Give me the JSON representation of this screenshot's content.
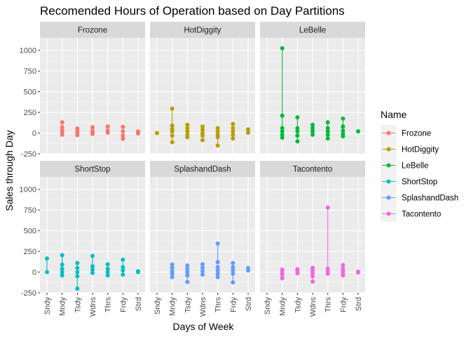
{
  "chart_data": {
    "type": "line",
    "title": "Recomended Hours of Operation based on Day Partitions",
    "xlabel": "Days of Week",
    "ylabel": "Sales through Day",
    "categories": [
      "Sndy",
      "Mndy",
      "Tsdy",
      "Wdns",
      "Thrs",
      "Frdy",
      "Strd"
    ],
    "ylim": [
      -250,
      1150
    ],
    "yticks": [
      -250,
      0,
      250,
      500,
      750,
      1000
    ],
    "grid": true,
    "layout": "facet grid 2 rows x 3 columns",
    "legend": {
      "title": "Name",
      "position": "right"
    },
    "series": [
      {
        "name": "Frozone",
        "color": "#F8766D",
        "points": [
          [
            "Mndy",
            130
          ],
          [
            "Mndy",
            70
          ],
          [
            "Mndy",
            35
          ],
          [
            "Mndy",
            10
          ],
          [
            "Mndy",
            -20
          ],
          [
            "Tsdy",
            55
          ],
          [
            "Tsdy",
            20
          ],
          [
            "Tsdy",
            -10
          ],
          [
            "Tsdy",
            -25
          ],
          [
            "Wdns",
            70
          ],
          [
            "Wdns",
            25
          ],
          [
            "Wdns",
            5
          ],
          [
            "Wdns",
            -10
          ],
          [
            "Thrs",
            80
          ],
          [
            "Thrs",
            30
          ],
          [
            "Thrs",
            5
          ],
          [
            "Frdy",
            75
          ],
          [
            "Frdy",
            20
          ],
          [
            "Frdy",
            -30
          ],
          [
            "Frdy",
            -70
          ],
          [
            "Strd",
            20
          ],
          [
            "Strd",
            5
          ],
          [
            "Strd",
            -5
          ]
        ]
      },
      {
        "name": "HotDiggity",
        "color": "#B79F00",
        "points": [
          [
            "Sndy",
            0
          ],
          [
            "Mndy",
            295
          ],
          [
            "Mndy",
            90
          ],
          [
            "Mndy",
            50
          ],
          [
            "Mndy",
            20
          ],
          [
            "Mndy",
            -30
          ],
          [
            "Mndy",
            -110
          ],
          [
            "Tsdy",
            100
          ],
          [
            "Tsdy",
            60
          ],
          [
            "Tsdy",
            20
          ],
          [
            "Tsdy",
            -20
          ],
          [
            "Tsdy",
            -50
          ],
          [
            "Wdns",
            80
          ],
          [
            "Wdns",
            40
          ],
          [
            "Wdns",
            0
          ],
          [
            "Wdns",
            -30
          ],
          [
            "Wdns",
            -85
          ],
          [
            "Thrs",
            60
          ],
          [
            "Thrs",
            20
          ],
          [
            "Thrs",
            -20
          ],
          [
            "Thrs",
            -50
          ],
          [
            "Thrs",
            -150
          ],
          [
            "Frdy",
            110
          ],
          [
            "Frdy",
            60
          ],
          [
            "Frdy",
            20
          ],
          [
            "Frdy",
            -20
          ],
          [
            "Frdy",
            -65
          ],
          [
            "Strd",
            45
          ],
          [
            "Strd",
            5
          ]
        ]
      },
      {
        "name": "LeBelle",
        "color": "#00BA38",
        "points": [
          [
            "Mndy",
            1025
          ],
          [
            "Mndy",
            210
          ],
          [
            "Mndy",
            60
          ],
          [
            "Mndy",
            20
          ],
          [
            "Mndy",
            -20
          ],
          [
            "Mndy",
            -55
          ],
          [
            "Tsdy",
            190
          ],
          [
            "Tsdy",
            60
          ],
          [
            "Tsdy",
            20
          ],
          [
            "Tsdy",
            -30
          ],
          [
            "Tsdy",
            -100
          ],
          [
            "Wdns",
            100
          ],
          [
            "Wdns",
            60
          ],
          [
            "Wdns",
            20
          ],
          [
            "Wdns",
            -20
          ],
          [
            "Thrs",
            130
          ],
          [
            "Thrs",
            60
          ],
          [
            "Thrs",
            20
          ],
          [
            "Thrs",
            -20
          ],
          [
            "Thrs",
            -65
          ],
          [
            "Frdy",
            175
          ],
          [
            "Frdy",
            80
          ],
          [
            "Frdy",
            30
          ],
          [
            "Frdy",
            -10
          ],
          [
            "Frdy",
            -40
          ],
          [
            "Strd",
            20
          ]
        ]
      },
      {
        "name": "ShortStop",
        "color": "#00BFC4",
        "points": [
          [
            "Sndy",
            165
          ],
          [
            "Sndy",
            0
          ],
          [
            "Mndy",
            205
          ],
          [
            "Mndy",
            90
          ],
          [
            "Mndy",
            40
          ],
          [
            "Mndy",
            0
          ],
          [
            "Mndy",
            -40
          ],
          [
            "Tsdy",
            110
          ],
          [
            "Tsdy",
            50
          ],
          [
            "Tsdy",
            0
          ],
          [
            "Tsdy",
            -50
          ],
          [
            "Tsdy",
            -200
          ],
          [
            "Wdns",
            195
          ],
          [
            "Wdns",
            70
          ],
          [
            "Wdns",
            30
          ],
          [
            "Wdns",
            -10
          ],
          [
            "Thrs",
            95
          ],
          [
            "Thrs",
            40
          ],
          [
            "Thrs",
            0
          ],
          [
            "Thrs",
            -40
          ],
          [
            "Frdy",
            150
          ],
          [
            "Frdy",
            60
          ],
          [
            "Frdy",
            20
          ],
          [
            "Frdy",
            -30
          ],
          [
            "Strd",
            10
          ],
          [
            "Strd",
            0
          ]
        ]
      },
      {
        "name": "SplashandDash",
        "color": "#619CFF",
        "points": [
          [
            "Mndy",
            90
          ],
          [
            "Mndy",
            50
          ],
          [
            "Mndy",
            10
          ],
          [
            "Mndy",
            -20
          ],
          [
            "Mndy",
            -60
          ],
          [
            "Tsdy",
            80
          ],
          [
            "Tsdy",
            40
          ],
          [
            "Tsdy",
            0
          ],
          [
            "Tsdy",
            -40
          ],
          [
            "Tsdy",
            -120
          ],
          [
            "Wdns",
            95
          ],
          [
            "Wdns",
            50
          ],
          [
            "Wdns",
            10
          ],
          [
            "Wdns",
            -30
          ],
          [
            "Thrs",
            345
          ],
          [
            "Thrs",
            120
          ],
          [
            "Thrs",
            60
          ],
          [
            "Thrs",
            20
          ],
          [
            "Thrs",
            -20
          ],
          [
            "Thrs",
            -60
          ],
          [
            "Frdy",
            110
          ],
          [
            "Frdy",
            60
          ],
          [
            "Frdy",
            20
          ],
          [
            "Frdy",
            -20
          ],
          [
            "Frdy",
            -125
          ],
          [
            "Strd",
            50
          ],
          [
            "Strd",
            20
          ]
        ]
      },
      {
        "name": "Tacontento",
        "color": "#F564E3",
        "points": [
          [
            "Mndy",
            30
          ],
          [
            "Mndy",
            0
          ],
          [
            "Mndy",
            -30
          ],
          [
            "Mndy",
            -75
          ],
          [
            "Tsdy",
            35
          ],
          [
            "Tsdy",
            10
          ],
          [
            "Tsdy",
            -15
          ],
          [
            "Wdns",
            50
          ],
          [
            "Wdns",
            20
          ],
          [
            "Wdns",
            -10
          ],
          [
            "Wdns",
            -50
          ],
          [
            "Wdns",
            -115
          ],
          [
            "Thrs",
            780
          ],
          [
            "Thrs",
            40
          ],
          [
            "Thrs",
            10
          ],
          [
            "Thrs",
            -20
          ],
          [
            "Frdy",
            85
          ],
          [
            "Frdy",
            40
          ],
          [
            "Frdy",
            10
          ],
          [
            "Frdy",
            -20
          ],
          [
            "Frdy",
            -40
          ],
          [
            "Strd",
            5
          ],
          [
            "Strd",
            -5
          ]
        ]
      }
    ]
  }
}
